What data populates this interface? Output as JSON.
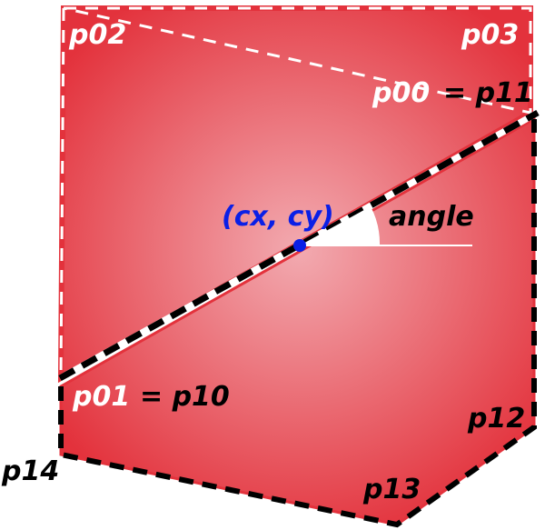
{
  "colors": {
    "fill_outer": "#e3323c",
    "fill_inner": "#f2aab0",
    "center_marker": "#0a1fe6",
    "top_border": "#e3323c",
    "bottom_border": "#000000"
  },
  "labels": {
    "p02": "p02",
    "p03": "p03",
    "p00": "p00",
    "p00_eq": "= p11",
    "center": "(cx, cy)",
    "angle": "angle",
    "p01": "p01",
    "p01_eq": "= p10",
    "p12": "p12",
    "p13": "p13",
    "p14": "p14"
  }
}
